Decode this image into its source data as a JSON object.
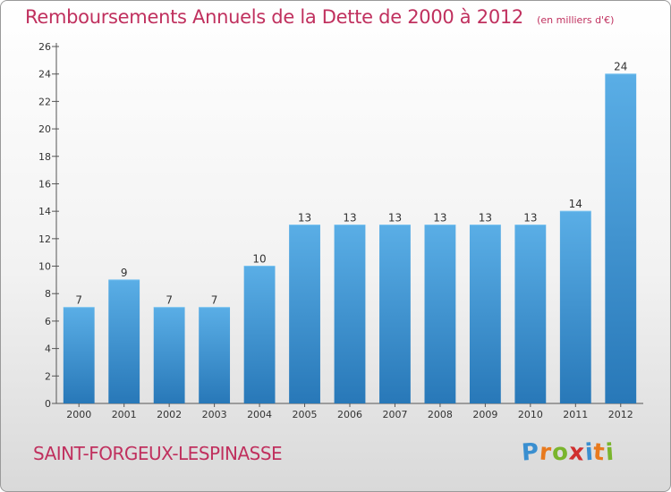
{
  "chart_data": {
    "type": "bar",
    "title": "Remboursements Annuels de la Dette de 2000 à 2012",
    "subtitle": "(en milliers d'€)",
    "categories": [
      "2000",
      "2001",
      "2002",
      "2003",
      "2004",
      "2005",
      "2006",
      "2007",
      "2008",
      "2009",
      "2010",
      "2011",
      "2012"
    ],
    "values": [
      7,
      9,
      7,
      7,
      10,
      13,
      13,
      13,
      13,
      13,
      13,
      14,
      24
    ],
    "ylim": [
      0,
      26
    ],
    "yticks": [
      0,
      2,
      4,
      6,
      8,
      10,
      12,
      14,
      16,
      18,
      20,
      22,
      24,
      26
    ],
    "grid": false,
    "bar_color_top": "#5aaee6",
    "bar_color_bottom": "#2878b8"
  },
  "footer": {
    "commune": "SAINT-FORGEUX-LESPINASSE",
    "logo_letters": [
      "P",
      "r",
      "o",
      "x",
      "i",
      "t",
      "i"
    ],
    "logo_colors": [
      "#3a8fd0",
      "#e87a1e",
      "#7ab52d",
      "#d0302f",
      "#3a8fd0",
      "#e87a1e",
      "#7ab52d"
    ]
  },
  "colors": {
    "title": "#c0305e",
    "axis": "#555555",
    "label": "#333333"
  }
}
